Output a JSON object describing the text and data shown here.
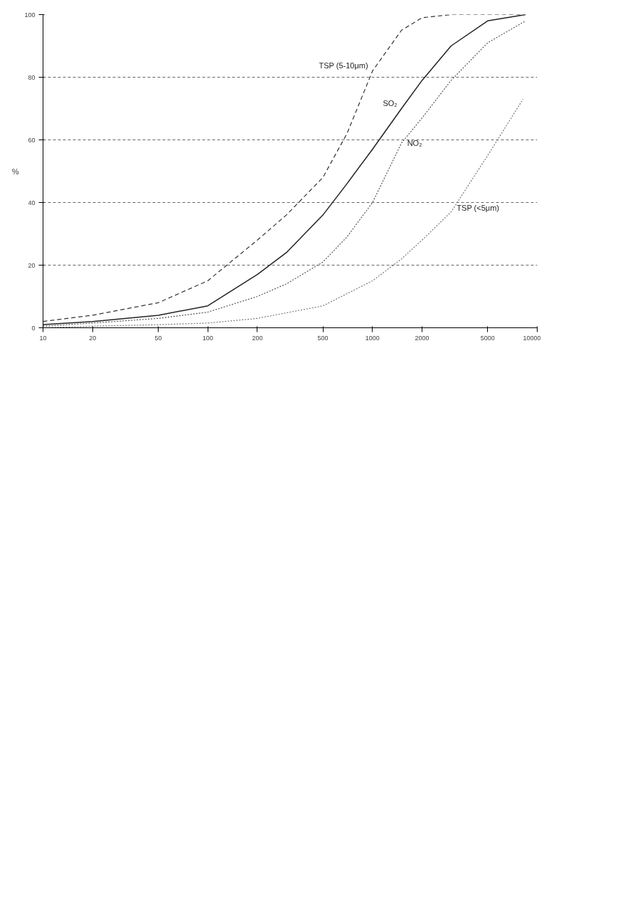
{
  "chart_data": {
    "type": "line",
    "ylabel": "%",
    "log": "x",
    "grid": "y",
    "legend": false,
    "xlim": [
      10,
      10000
    ],
    "xticks": [
      10,
      20,
      50,
      100,
      200,
      500,
      1000,
      2000,
      5000,
      10000
    ],
    "ylim": [
      0,
      100
    ],
    "yticks": [
      0,
      20,
      40,
      60,
      80,
      100
    ],
    "series": [
      {
        "name": "TSP (5-10μm)",
        "color": "#333333",
        "line_style": "dashed",
        "x": [
          10,
          20,
          50,
          100,
          200,
          300,
          500,
          700,
          1000,
          1500,
          2000,
          3000,
          8500
        ],
        "values": [
          2,
          4,
          8,
          15,
          28,
          36,
          48,
          62,
          82,
          95,
          99,
          100,
          100
        ]
      },
      {
        "name": "SO₂",
        "color": "#222222",
        "line_style": "solid",
        "x": [
          10,
          20,
          50,
          100,
          200,
          300,
          500,
          700,
          1000,
          1500,
          2000,
          3000,
          5000,
          8500
        ],
        "values": [
          1,
          2,
          4,
          7,
          17,
          24,
          36,
          46,
          57,
          70,
          79,
          90,
          98,
          100
        ]
      },
      {
        "name": "NO₂",
        "color": "#555555",
        "line_style": "dotted",
        "x": [
          10,
          20,
          50,
          100,
          200,
          300,
          500,
          700,
          1000,
          1500,
          2000,
          3000,
          5000,
          8500
        ],
        "values": [
          0.5,
          1.5,
          3,
          5,
          10,
          14,
          21,
          29,
          40,
          59,
          67,
          79,
          91,
          98
        ]
      },
      {
        "name": "TSP (<5μm)",
        "color": "#777777",
        "line_style": "dotted",
        "x": [
          10,
          20,
          50,
          100,
          200,
          500,
          1000,
          1500,
          2000,
          3000,
          5000,
          8200
        ],
        "values": [
          0,
          0.5,
          1,
          1.5,
          3,
          7,
          15,
          22,
          28,
          37,
          55,
          73
        ]
      }
    ]
  }
}
